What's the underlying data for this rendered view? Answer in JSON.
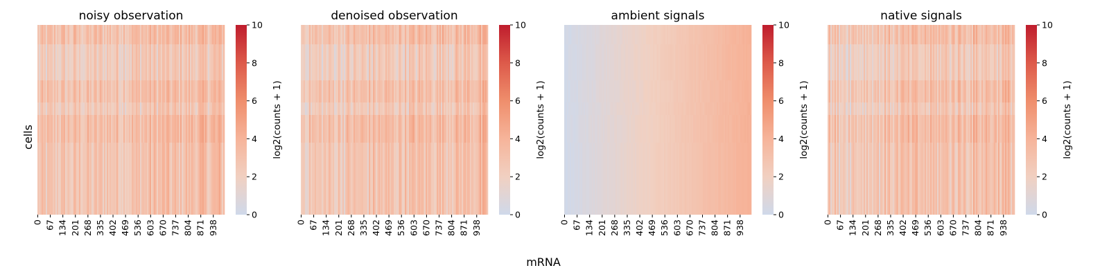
{
  "figure": {
    "ylabel": "cells",
    "xlabel": "mRNA"
  },
  "colors": {
    "cmap_low": "#cfd9ea",
    "cmap_mid": "#f4c3ac",
    "cmap_high": "#bf1d2d",
    "background": "#ffffff"
  },
  "chart_data": [
    {
      "type": "heatmap",
      "title": "noisy observation",
      "xlabel": "mRNA",
      "ylabel": "cells",
      "x_ticks": [
        "0",
        "67",
        "134",
        "201",
        "268",
        "335",
        "402",
        "469",
        "536",
        "603",
        "670",
        "737",
        "804",
        "871",
        "938"
      ],
      "n_columns": 1000,
      "colorbar": {
        "label": "log2(counts + 1)",
        "ticks": [
          "0",
          "2",
          "4",
          "6",
          "8",
          "10"
        ],
        "range": [
          0,
          10
        ]
      },
      "value_range_observed": [
        0.5,
        5.5
      ],
      "pattern": "vertical gene stripes with cell-block banding"
    },
    {
      "type": "heatmap",
      "title": "denoised observation",
      "xlabel": "mRNA",
      "ylabel": "cells",
      "x_ticks": [
        "0",
        "67",
        "134",
        "201",
        "268",
        "335",
        "402",
        "469",
        "536",
        "603",
        "670",
        "737",
        "804",
        "871",
        "938"
      ],
      "n_columns": 1000,
      "colorbar": {
        "label": "log2(counts + 1)",
        "ticks": [
          "0",
          "2",
          "4",
          "6",
          "8",
          "10"
        ],
        "range": [
          0,
          10
        ]
      },
      "value_range_observed": [
        0.5,
        5.5
      ],
      "pattern": "vertical gene stripes with cell-block banding"
    },
    {
      "type": "heatmap",
      "title": "ambient signals",
      "xlabel": "mRNA",
      "ylabel": "cells",
      "x_ticks": [
        "0",
        "67",
        "134",
        "201",
        "268",
        "335",
        "402",
        "469",
        "536",
        "603",
        "670",
        "737",
        "804",
        "871",
        "938"
      ],
      "n_columns": 1000,
      "colorbar": {
        "label": "log2(counts + 1)",
        "ticks": [
          "0",
          "2",
          "4",
          "6",
          "8",
          "10"
        ],
        "range": [
          0,
          10
        ]
      },
      "value_range_observed": [
        0.0,
        4.5
      ],
      "pattern": "smooth gradient increasing left to right"
    },
    {
      "type": "heatmap",
      "title": "native signals",
      "xlabel": "mRNA",
      "ylabel": "cells",
      "x_ticks": [
        "0",
        "67",
        "134",
        "201",
        "268",
        "335",
        "402",
        "469",
        "536",
        "603",
        "670",
        "737",
        "804",
        "871",
        "938"
      ],
      "n_columns": 1000,
      "colorbar": {
        "label": "log2(counts + 1)",
        "ticks": [
          "0",
          "2",
          "4",
          "6",
          "8",
          "10"
        ],
        "range": [
          0,
          10
        ]
      },
      "value_range_observed": [
        0.0,
        5.5
      ],
      "pattern": "vertical gene stripes with cell-block banding"
    }
  ]
}
